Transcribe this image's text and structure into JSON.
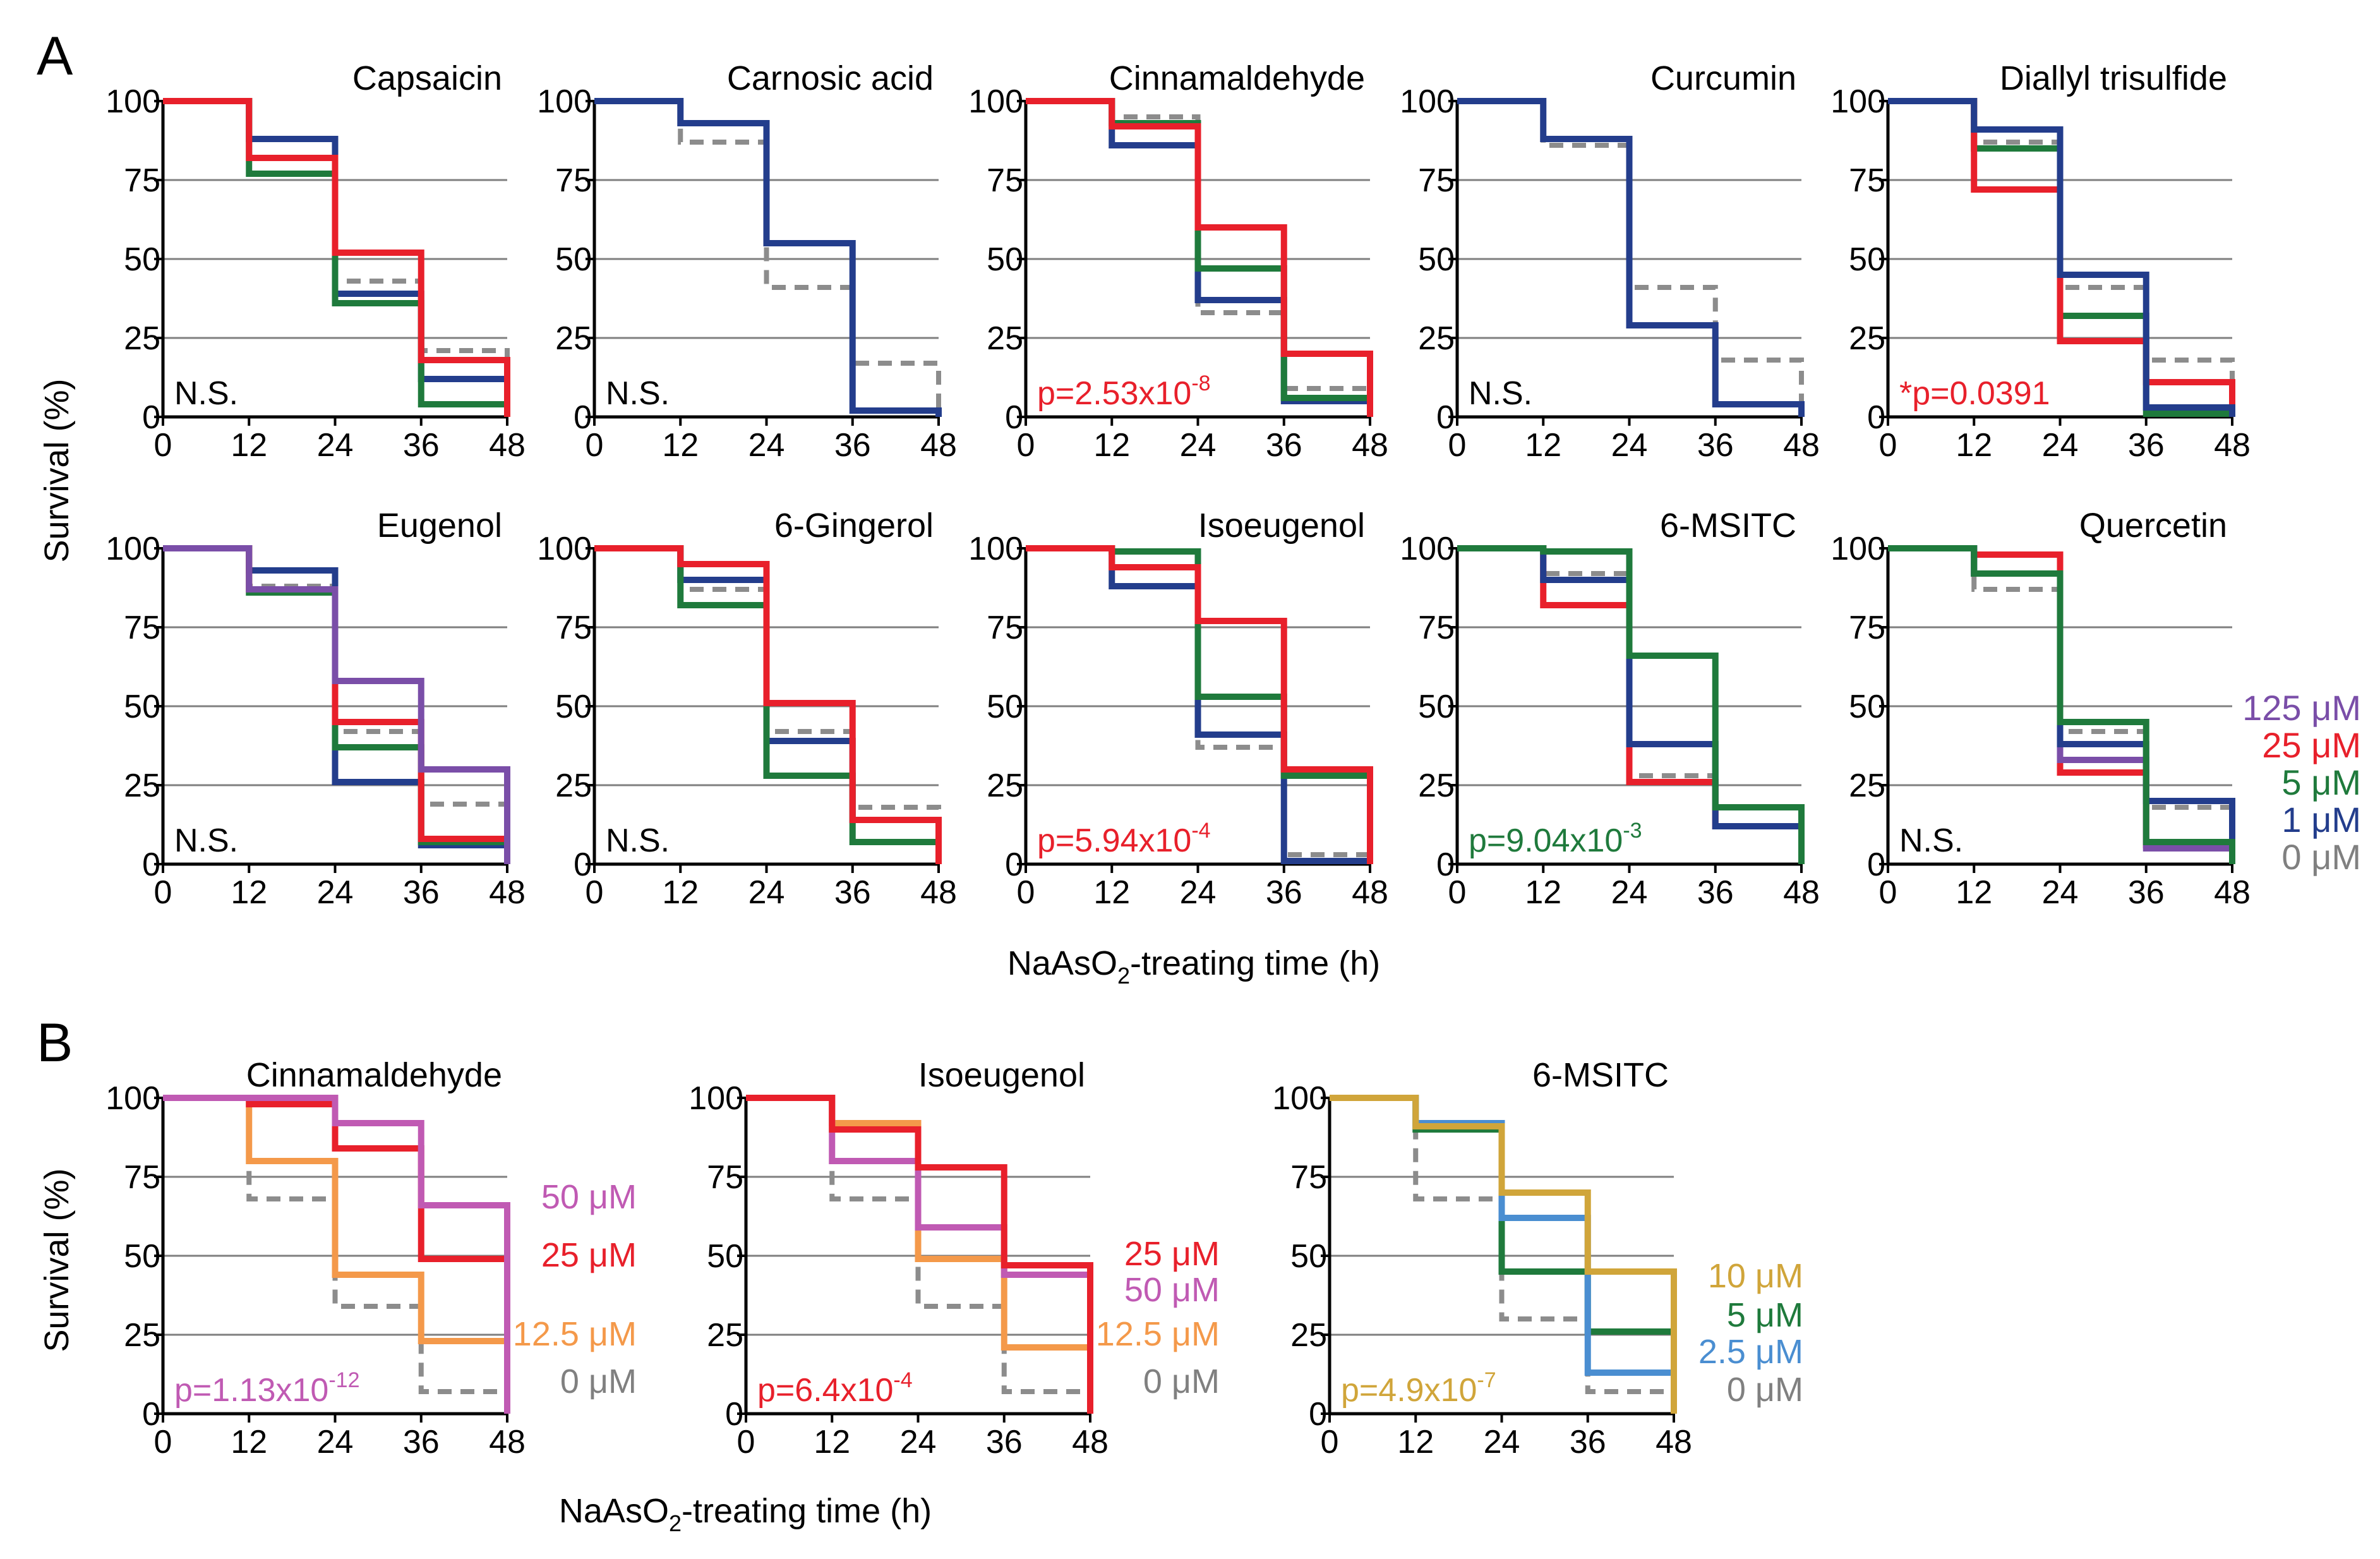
{
  "figure": {
    "panel_a_letter": "A",
    "panel_b_letter": "B",
    "y_label": "Survival (%)",
    "x_label_a": {
      "pre": "NaAsO",
      "sub": "2",
      "post": "-treating time (h)"
    },
    "x_label_b": {
      "pre": "NaAsO",
      "sub": "2",
      "post": "-treating time (h)"
    },
    "legend_a": [
      {
        "label": "125 μM",
        "color": "#7a4ea8"
      },
      {
        "label": "25 μM",
        "color": "#e8202b"
      },
      {
        "label": "5 μM",
        "color": "#1f7a3c"
      },
      {
        "label": "1 μM",
        "color": "#233d8c"
      },
      {
        "label": "0 μM",
        "color": "#808080"
      }
    ],
    "colors": {
      "c125": "#7a4ea8",
      "c25": "#e8202b",
      "c5": "#1f7a3c",
      "c1": "#233d8c",
      "c0": "#8c8c8c",
      "c50": "#c05ab3",
      "c12_5": "#f4994a",
      "c10": "#d0a53a",
      "c2_5": "#4a8ed1"
    }
  },
  "chart_data": [
    {
      "type": "line",
      "step": true,
      "panel": "A",
      "title": "Capsaicin",
      "stat": {
        "pre": "N.S.",
        "sup": "",
        "color": "#000000"
      },
      "x": [
        0,
        12,
        24,
        36,
        48
      ],
      "xlim": [
        0,
        48
      ],
      "ylim": [
        0,
        100
      ],
      "xticks": [
        0,
        12,
        24,
        36,
        48
      ],
      "yticks": [
        0,
        25,
        50,
        75,
        100
      ],
      "xlabel": "",
      "ylabel": "Survival (%)",
      "series": [
        {
          "name": "0 μM",
          "color": "#8c8c8c",
          "dashed": true,
          "values": [
            100,
            88,
            43,
            21,
            0
          ]
        },
        {
          "name": "1 μM",
          "color": "#233d8c",
          "values": [
            100,
            88,
            39,
            12,
            0
          ]
        },
        {
          "name": "5 μM",
          "color": "#1f7a3c",
          "values": [
            100,
            77,
            36,
            4,
            0
          ]
        },
        {
          "name": "25 μM",
          "color": "#e8202b",
          "values": [
            100,
            82,
            52,
            18,
            0
          ]
        }
      ]
    },
    {
      "type": "line",
      "step": true,
      "panel": "A",
      "title": "Carnosic acid",
      "stat": {
        "pre": "N.S.",
        "sup": "",
        "color": "#000000"
      },
      "x": [
        0,
        12,
        24,
        36,
        48
      ],
      "xlim": [
        0,
        48
      ],
      "ylim": [
        0,
        100
      ],
      "xticks": [
        0,
        12,
        24,
        36,
        48
      ],
      "yticks": [
        0,
        25,
        50,
        75,
        100
      ],
      "series": [
        {
          "name": "0 μM",
          "color": "#8c8c8c",
          "dashed": true,
          "values": [
            100,
            87,
            41,
            17,
            0
          ]
        },
        {
          "name": "1 μM",
          "color": "#233d8c",
          "values": [
            100,
            93,
            55,
            2,
            0
          ]
        }
      ]
    },
    {
      "type": "line",
      "step": true,
      "panel": "A",
      "title": "Cinnamaldehyde",
      "stat": {
        "pre": "p=2.53x10",
        "sup": "-8",
        "color": "#e8202b"
      },
      "x": [
        0,
        12,
        24,
        36,
        48
      ],
      "xlim": [
        0,
        48
      ],
      "ylim": [
        0,
        100
      ],
      "xticks": [
        0,
        12,
        24,
        36,
        48
      ],
      "yticks": [
        0,
        25,
        50,
        75,
        100
      ],
      "series": [
        {
          "name": "0 μM",
          "color": "#8c8c8c",
          "dashed": true,
          "values": [
            100,
            95,
            33,
            9,
            0
          ]
        },
        {
          "name": "1 μM",
          "color": "#233d8c",
          "values": [
            100,
            86,
            37,
            5,
            0
          ]
        },
        {
          "name": "5 μM",
          "color": "#1f7a3c",
          "values": [
            100,
            93,
            47,
            6,
            0
          ]
        },
        {
          "name": "25 μM",
          "color": "#e8202b",
          "values": [
            100,
            92,
            60,
            20,
            0
          ]
        }
      ]
    },
    {
      "type": "line",
      "step": true,
      "panel": "A",
      "title": "Curcumin",
      "stat": {
        "pre": "N.S.",
        "sup": "",
        "color": "#000000"
      },
      "x": [
        0,
        12,
        24,
        36,
        48
      ],
      "xlim": [
        0,
        48
      ],
      "ylim": [
        0,
        100
      ],
      "xticks": [
        0,
        12,
        24,
        36,
        48
      ],
      "yticks": [
        0,
        25,
        50,
        75,
        100
      ],
      "series": [
        {
          "name": "0 μM",
          "color": "#8c8c8c",
          "dashed": true,
          "values": [
            100,
            86,
            41,
            18,
            0
          ]
        },
        {
          "name": "1 μM",
          "color": "#233d8c",
          "values": [
            100,
            88,
            29,
            4,
            0
          ]
        }
      ]
    },
    {
      "type": "line",
      "step": true,
      "panel": "A",
      "title": "Diallyl trisulfide",
      "stat": {
        "pre": "*p=0.0391",
        "sup": "",
        "color": "#e8202b"
      },
      "x": [
        0,
        12,
        24,
        36,
        48
      ],
      "xlim": [
        0,
        48
      ],
      "ylim": [
        0,
        100
      ],
      "xticks": [
        0,
        12,
        24,
        36,
        48
      ],
      "yticks": [
        0,
        25,
        50,
        75,
        100
      ],
      "series": [
        {
          "name": "0 μM",
          "color": "#8c8c8c",
          "dashed": true,
          "values": [
            100,
            87,
            41,
            18,
            0
          ]
        },
        {
          "name": "5 μM",
          "color": "#1f7a3c",
          "values": [
            100,
            85,
            32,
            1,
            0
          ]
        },
        {
          "name": "25 μM",
          "color": "#e8202b",
          "values": [
            100,
            72,
            24,
            11,
            0
          ]
        },
        {
          "name": "1 μM",
          "color": "#233d8c",
          "values": [
            100,
            91,
            45,
            3,
            0
          ]
        }
      ]
    },
    {
      "type": "line",
      "step": true,
      "panel": "A",
      "title": "Eugenol",
      "stat": {
        "pre": "N.S.",
        "sup": "",
        "color": "#000000"
      },
      "x": [
        0,
        12,
        24,
        36,
        48
      ],
      "xlim": [
        0,
        48
      ],
      "ylim": [
        0,
        100
      ],
      "xticks": [
        0,
        12,
        24,
        36,
        48
      ],
      "yticks": [
        0,
        25,
        50,
        75,
        100
      ],
      "series": [
        {
          "name": "0 μM",
          "color": "#8c8c8c",
          "dashed": true,
          "values": [
            100,
            88,
            42,
            19,
            0
          ]
        },
        {
          "name": "1 μM",
          "color": "#233d8c",
          "values": [
            100,
            93,
            26,
            6,
            0
          ]
        },
        {
          "name": "5 μM",
          "color": "#1f7a3c",
          "values": [
            100,
            86,
            37,
            7,
            0
          ]
        },
        {
          "name": "25 μM",
          "color": "#e8202b",
          "values": [
            100,
            87,
            45,
            8,
            0
          ]
        },
        {
          "name": "125 μM",
          "color": "#7a4ea8",
          "values": [
            100,
            87,
            58,
            30,
            0
          ]
        }
      ]
    },
    {
      "type": "line",
      "step": true,
      "panel": "A",
      "title": "6-Gingerol",
      "stat": {
        "pre": "N.S.",
        "sup": "",
        "color": "#000000"
      },
      "x": [
        0,
        12,
        24,
        36,
        48
      ],
      "xlim": [
        0,
        48
      ],
      "ylim": [
        0,
        100
      ],
      "xticks": [
        0,
        12,
        24,
        36,
        48
      ],
      "yticks": [
        0,
        25,
        50,
        75,
        100
      ],
      "series": [
        {
          "name": "0 μM",
          "color": "#8c8c8c",
          "dashed": true,
          "values": [
            100,
            87,
            42,
            18,
            0
          ]
        },
        {
          "name": "1 μM",
          "color": "#233d8c",
          "values": [
            100,
            90,
            39,
            14,
            0
          ]
        },
        {
          "name": "5 μM",
          "color": "#1f7a3c",
          "values": [
            100,
            82,
            28,
            7,
            0
          ]
        },
        {
          "name": "25 μM",
          "color": "#e8202b",
          "values": [
            100,
            95,
            51,
            14,
            0
          ]
        }
      ]
    },
    {
      "type": "line",
      "step": true,
      "panel": "A",
      "title": "Isoeugenol",
      "stat": {
        "pre": "p=5.94x10",
        "sup": "-4",
        "color": "#e8202b"
      },
      "x": [
        0,
        12,
        24,
        36,
        48
      ],
      "xlim": [
        0,
        48
      ],
      "ylim": [
        0,
        100
      ],
      "xticks": [
        0,
        12,
        24,
        36,
        48
      ],
      "yticks": [
        0,
        25,
        50,
        75,
        100
      ],
      "series": [
        {
          "name": "0 μM",
          "color": "#8c8c8c",
          "dashed": true,
          "values": [
            100,
            88,
            37,
            3,
            0
          ]
        },
        {
          "name": "1 μM",
          "color": "#233d8c",
          "values": [
            100,
            88,
            41,
            1,
            0
          ]
        },
        {
          "name": "5 μM",
          "color": "#1f7a3c",
          "values": [
            100,
            99,
            53,
            28,
            0
          ]
        },
        {
          "name": "25 μM",
          "color": "#e8202b",
          "values": [
            100,
            94,
            77,
            30,
            0
          ]
        }
      ]
    },
    {
      "type": "line",
      "step": true,
      "panel": "A",
      "title": "6-MSITC",
      "stat": {
        "pre": "p=9.04x10",
        "sup": "-3",
        "color": "#1f7a3c"
      },
      "x": [
        0,
        12,
        24,
        36,
        48
      ],
      "xlim": [
        0,
        48
      ],
      "ylim": [
        0,
        100
      ],
      "xticks": [
        0,
        12,
        24,
        36,
        48
      ],
      "yticks": [
        0,
        25,
        50,
        75,
        100
      ],
      "series": [
        {
          "name": "0 μM",
          "color": "#8c8c8c",
          "dashed": true,
          "values": [
            100,
            92,
            28,
            12,
            0
          ]
        },
        {
          "name": "25 μM",
          "color": "#e8202b",
          "values": [
            100,
            82,
            26,
            12,
            0
          ]
        },
        {
          "name": "1 μM",
          "color": "#233d8c",
          "values": [
            100,
            90,
            38,
            12,
            0
          ]
        },
        {
          "name": "5 μM",
          "color": "#1f7a3c",
          "values": [
            100,
            99,
            66,
            18,
            0
          ]
        }
      ]
    },
    {
      "type": "line",
      "step": true,
      "panel": "A",
      "title": "Quercetin",
      "stat": {
        "pre": "N.S.",
        "sup": "",
        "color": "#000000"
      },
      "x": [
        0,
        12,
        24,
        36,
        48
      ],
      "xlim": [
        0,
        48
      ],
      "ylim": [
        0,
        100
      ],
      "xticks": [
        0,
        12,
        24,
        36,
        48
      ],
      "yticks": [
        0,
        25,
        50,
        75,
        100
      ],
      "series": [
        {
          "name": "0 μM",
          "color": "#8c8c8c",
          "dashed": true,
          "values": [
            100,
            87,
            42,
            18,
            0
          ]
        },
        {
          "name": "25 μM",
          "color": "#e8202b",
          "values": [
            100,
            98,
            29,
            6,
            0
          ]
        },
        {
          "name": "125 μM",
          "color": "#7a4ea8",
          "values": [
            100,
            92,
            33,
            5,
            0
          ]
        },
        {
          "name": "1 μM",
          "color": "#233d8c",
          "values": [
            100,
            92,
            38,
            20,
            0
          ]
        },
        {
          "name": "5 μM",
          "color": "#1f7a3c",
          "values": [
            100,
            92,
            45,
            7,
            0
          ]
        }
      ]
    },
    {
      "type": "line",
      "step": true,
      "panel": "B",
      "title": "Cinnamaldehyde",
      "stat": {
        "pre": "p=1.13x10",
        "sup": "-12",
        "color": "#c05ab3"
      },
      "x": [
        0,
        12,
        24,
        36,
        48
      ],
      "xlim": [
        0,
        48
      ],
      "ylim": [
        0,
        100
      ],
      "xticks": [
        0,
        12,
        24,
        36,
        48
      ],
      "yticks": [
        0,
        25,
        50,
        75,
        100
      ],
      "xlabel": "",
      "ylabel": "Survival (%)",
      "legend": [
        {
          "label": "50 μM",
          "color": "#c05ab3"
        },
        {
          "label": "25 μM",
          "color": "#e8202b"
        },
        {
          "label": "12.5 μM",
          "color": "#f4994a"
        },
        {
          "label": "0 μM",
          "color": "#808080"
        }
      ],
      "series": [
        {
          "name": "0 μM",
          "color": "#8c8c8c",
          "dashed": true,
          "values": [
            100,
            68,
            34,
            7,
            0
          ]
        },
        {
          "name": "12.5 μM",
          "color": "#f4994a",
          "values": [
            100,
            80,
            44,
            23,
            0
          ]
        },
        {
          "name": "25 μM",
          "color": "#e8202b",
          "values": [
            100,
            98,
            84,
            49,
            12
          ]
        },
        {
          "name": "50 μM",
          "color": "#c05ab3",
          "values": [
            100,
            100,
            92,
            66,
            0
          ]
        }
      ]
    },
    {
      "type": "line",
      "step": true,
      "panel": "B",
      "title": "Isoeugenol",
      "stat": {
        "pre": "p=6.4x10",
        "sup": "-4",
        "color": "#e8202b"
      },
      "x": [
        0,
        12,
        24,
        36,
        48
      ],
      "xlim": [
        0,
        48
      ],
      "ylim": [
        0,
        100
      ],
      "xticks": [
        0,
        12,
        24,
        36,
        48
      ],
      "yticks": [
        0,
        25,
        50,
        75,
        100
      ],
      "legend": [
        {
          "label": "25 μM",
          "color": "#e8202b"
        },
        {
          "label": "50 μM",
          "color": "#c05ab3"
        },
        {
          "label": "12.5 μM",
          "color": "#f4994a"
        },
        {
          "label": "0 μM",
          "color": "#808080"
        }
      ],
      "series": [
        {
          "name": "0 μM",
          "color": "#8c8c8c",
          "dashed": true,
          "values": [
            100,
            68,
            34,
            7,
            0
          ]
        },
        {
          "name": "12.5 μM",
          "color": "#f4994a",
          "values": [
            100,
            92,
            49,
            21,
            0
          ]
        },
        {
          "name": "50 μM",
          "color": "#c05ab3",
          "values": [
            100,
            80,
            59,
            44,
            0
          ]
        },
        {
          "name": "25 μM",
          "color": "#e8202b",
          "values": [
            100,
            90,
            78,
            47,
            0
          ]
        }
      ]
    },
    {
      "type": "line",
      "step": true,
      "panel": "B",
      "title": "6-MSITC",
      "stat": {
        "pre": "p=4.9x10",
        "sup": "-7",
        "color": "#d0a53a"
      },
      "x": [
        0,
        12,
        24,
        36,
        48
      ],
      "xlim": [
        0,
        48
      ],
      "ylim": [
        0,
        100
      ],
      "xticks": [
        0,
        12,
        24,
        36,
        48
      ],
      "yticks": [
        0,
        25,
        50,
        75,
        100
      ],
      "legend": [
        {
          "label": "10 μM",
          "color": "#d0a53a"
        },
        {
          "label": "5 μM",
          "color": "#1f7a3c"
        },
        {
          "label": "2.5 μM",
          "color": "#4a8ed1"
        },
        {
          "label": "0 μM",
          "color": "#808080"
        }
      ],
      "series": [
        {
          "name": "0 μM",
          "color": "#8c8c8c",
          "dashed": true,
          "values": [
            100,
            68,
            30,
            7,
            0
          ]
        },
        {
          "name": "5 μM",
          "color": "#1f7a3c",
          "values": [
            100,
            90,
            45,
            26,
            0
          ]
        },
        {
          "name": "2.5 μM",
          "color": "#4a8ed1",
          "values": [
            100,
            92,
            62,
            13,
            0
          ]
        },
        {
          "name": "10 μM",
          "color": "#d0a53a",
          "values": [
            100,
            91,
            70,
            45,
            0
          ]
        }
      ]
    }
  ]
}
